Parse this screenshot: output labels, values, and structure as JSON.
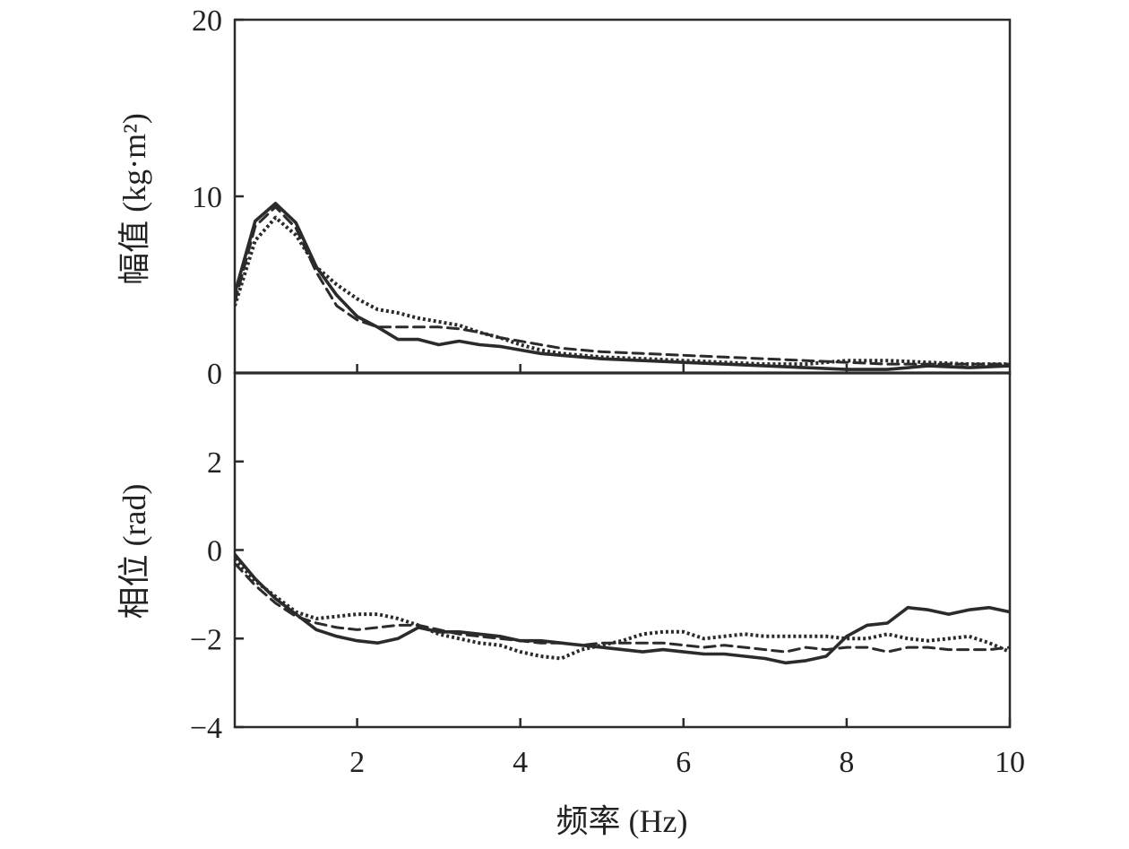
{
  "chart_data": [
    {
      "type": "line",
      "panel": "top",
      "ylabel": "幅值 (kg·m²)",
      "xlim": [
        0.5,
        10
      ],
      "ylim": [
        0,
        20
      ],
      "yticks": [
        0,
        10,
        20
      ],
      "xticks": [
        2,
        4,
        6,
        8
      ],
      "grid": false,
      "series": [
        {
          "line_style": "solid",
          "x": [
            0.5,
            0.75,
            1.0,
            1.25,
            1.5,
            1.75,
            2.0,
            2.25,
            2.5,
            2.75,
            3.0,
            3.25,
            3.5,
            3.75,
            4.0,
            4.25,
            4.5,
            5.0,
            5.5,
            6.0,
            6.5,
            7.0,
            7.5,
            8.0,
            8.5,
            9.0,
            9.5,
            10.0
          ],
          "values": [
            4.5,
            8.6,
            9.6,
            8.5,
            6.0,
            4.4,
            3.2,
            2.6,
            1.9,
            1.9,
            1.6,
            1.8,
            1.6,
            1.5,
            1.3,
            1.1,
            1.0,
            0.8,
            0.7,
            0.6,
            0.5,
            0.4,
            0.3,
            0.2,
            0.2,
            0.4,
            0.3,
            0.4
          ]
        },
        {
          "line_style": "dashed",
          "x": [
            0.5,
            0.75,
            1.0,
            1.25,
            1.5,
            1.75,
            2.0,
            2.25,
            2.5,
            2.75,
            3.0,
            3.25,
            3.5,
            3.75,
            4.0,
            4.25,
            4.5,
            5.0,
            5.5,
            6.0,
            6.5,
            7.0,
            7.5,
            8.0,
            8.5,
            9.0,
            9.5,
            10.0
          ],
          "values": [
            4.0,
            8.3,
            9.4,
            8.2,
            5.7,
            3.8,
            3.0,
            2.6,
            2.6,
            2.6,
            2.6,
            2.5,
            2.3,
            2.0,
            1.8,
            1.6,
            1.4,
            1.2,
            1.1,
            1.0,
            0.9,
            0.8,
            0.7,
            0.6,
            0.5,
            0.5,
            0.5,
            0.5
          ]
        },
        {
          "line_style": "dotted",
          "x": [
            0.5,
            0.75,
            1.0,
            1.25,
            1.5,
            1.75,
            2.0,
            2.25,
            2.5,
            2.75,
            3.0,
            3.25,
            3.5,
            3.75,
            4.0,
            4.25,
            4.5,
            5.0,
            5.5,
            6.0,
            6.5,
            7.0,
            7.5,
            8.0,
            8.5,
            9.0,
            9.5,
            10.0
          ],
          "values": [
            3.8,
            7.5,
            8.8,
            7.8,
            6.0,
            5.0,
            4.2,
            3.6,
            3.4,
            3.1,
            2.9,
            2.7,
            2.3,
            2.0,
            1.6,
            1.3,
            1.1,
            0.9,
            0.8,
            0.7,
            0.6,
            0.5,
            0.5,
            0.7,
            0.7,
            0.6,
            0.5,
            0.5
          ]
        }
      ]
    },
    {
      "type": "line",
      "panel": "bottom",
      "xlabel": "频率 (Hz)",
      "ylabel": "相位 (rad)",
      "xlim": [
        0.5,
        10
      ],
      "ylim": [
        -4,
        4
      ],
      "yticks": [
        -4,
        -2,
        0,
        2
      ],
      "ytick_labels": [
        "−4",
        "−2",
        "0",
        "2"
      ],
      "xticks": [
        2,
        4,
        6,
        8,
        10
      ],
      "grid": false,
      "series": [
        {
          "line_style": "solid",
          "x": [
            0.5,
            0.75,
            1.0,
            1.25,
            1.5,
            1.75,
            2.0,
            2.25,
            2.5,
            2.75,
            3.0,
            3.25,
            3.5,
            3.75,
            4.0,
            4.25,
            4.5,
            4.75,
            5.0,
            5.25,
            5.5,
            5.75,
            6.0,
            6.25,
            6.5,
            6.75,
            7.0,
            7.25,
            7.5,
            7.75,
            8.0,
            8.25,
            8.5,
            8.75,
            9.0,
            9.25,
            9.5,
            9.75,
            10.0
          ],
          "values": [
            -0.1,
            -0.65,
            -1.1,
            -1.45,
            -1.8,
            -1.95,
            -2.05,
            -2.1,
            -2.0,
            -1.75,
            -1.85,
            -1.85,
            -1.9,
            -1.95,
            -2.05,
            -2.05,
            -2.1,
            -2.15,
            -2.2,
            -2.25,
            -2.3,
            -2.25,
            -2.3,
            -2.35,
            -2.35,
            -2.4,
            -2.45,
            -2.55,
            -2.5,
            -2.4,
            -1.95,
            -1.7,
            -1.65,
            -1.3,
            -1.35,
            -1.45,
            -1.35,
            -1.3,
            -1.4
          ]
        },
        {
          "line_style": "dashed",
          "x": [
            0.5,
            0.75,
            1.0,
            1.25,
            1.5,
            1.75,
            2.0,
            2.25,
            2.5,
            2.75,
            3.0,
            3.25,
            3.5,
            3.75,
            4.0,
            4.25,
            4.5,
            4.75,
            5.0,
            5.25,
            5.5,
            5.75,
            6.0,
            6.25,
            6.5,
            6.75,
            7.0,
            7.25,
            7.5,
            7.75,
            8.0,
            8.25,
            8.5,
            8.75,
            9.0,
            9.25,
            9.5,
            9.75,
            10.0
          ],
          "values": [
            -0.3,
            -0.8,
            -1.2,
            -1.5,
            -1.65,
            -1.75,
            -1.8,
            -1.75,
            -1.7,
            -1.7,
            -1.8,
            -1.9,
            -1.95,
            -2.0,
            -2.05,
            -2.1,
            -2.1,
            -2.15,
            -2.1,
            -2.1,
            -2.1,
            -2.1,
            -2.15,
            -2.2,
            -2.15,
            -2.2,
            -2.25,
            -2.3,
            -2.2,
            -2.25,
            -2.2,
            -2.2,
            -2.3,
            -2.2,
            -2.2,
            -2.25,
            -2.25,
            -2.25,
            -2.2
          ]
        },
        {
          "line_style": "dotted",
          "x": [
            0.5,
            0.75,
            1.0,
            1.25,
            1.5,
            1.75,
            2.0,
            2.25,
            2.5,
            2.75,
            3.0,
            3.25,
            3.5,
            3.75,
            4.0,
            4.25,
            4.5,
            4.75,
            5.0,
            5.25,
            5.5,
            5.75,
            6.0,
            6.25,
            6.5,
            6.75,
            7.0,
            7.25,
            7.5,
            7.75,
            8.0,
            8.25,
            8.5,
            8.75,
            9.0,
            9.25,
            9.5,
            9.75,
            10.0
          ],
          "values": [
            -0.2,
            -0.7,
            -1.05,
            -1.4,
            -1.55,
            -1.5,
            -1.45,
            -1.45,
            -1.55,
            -1.7,
            -1.9,
            -2.0,
            -2.1,
            -2.15,
            -2.3,
            -2.4,
            -2.45,
            -2.25,
            -2.15,
            -2.05,
            -1.9,
            -1.85,
            -1.85,
            -2.0,
            -1.95,
            -1.9,
            -1.95,
            -1.95,
            -1.95,
            -1.95,
            -2.0,
            -2.0,
            -1.9,
            -2.0,
            -2.05,
            -2.0,
            -1.95,
            -2.1,
            -2.3
          ]
        }
      ]
    }
  ]
}
